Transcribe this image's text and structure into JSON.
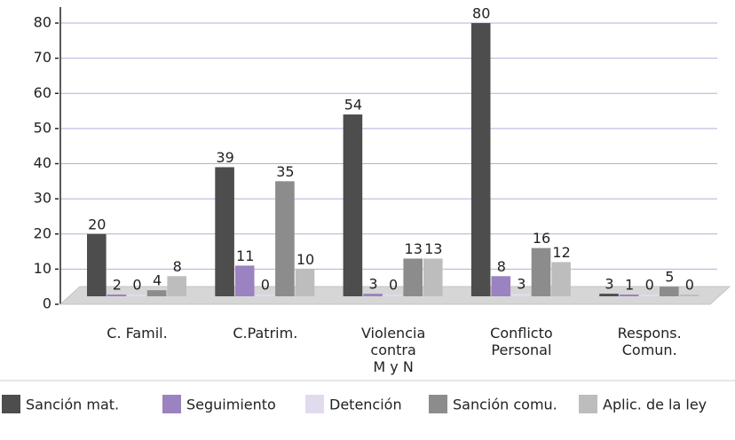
{
  "chart_data": {
    "type": "bar",
    "categories": [
      "C. Famil.",
      "C.Patrim.",
      "Violencia\ncontra\nM y N",
      "Conflicto\nPersonal",
      "Respons.\nComun."
    ],
    "series": [
      {
        "name": "Sanción mat.",
        "color": "#4d4d4d",
        "values": [
          20,
          39,
          54,
          80,
          3
        ]
      },
      {
        "name": "Seguimiento",
        "color": "#9b82c0",
        "values": [
          2,
          11,
          3,
          8,
          1
        ]
      },
      {
        "name": "Detención",
        "color": "#e2dbee",
        "values": [
          0,
          0,
          0,
          3,
          0
        ]
      },
      {
        "name": "Sanción comu.",
        "color": "#8c8c8c",
        "values": [
          4,
          35,
          13,
          16,
          5
        ]
      },
      {
        "name": "Aplic. de la ley",
        "color": "#bdbdbd",
        "values": [
          8,
          10,
          13,
          12,
          0
        ]
      }
    ],
    "ylim": [
      0,
      80
    ],
    "yticks": [
      0,
      10,
      20,
      30,
      40,
      50,
      60,
      70,
      80
    ],
    "grid": true,
    "legend": "bottom"
  }
}
